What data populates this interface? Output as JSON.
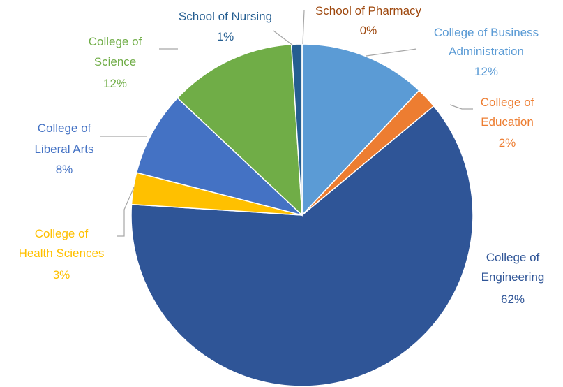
{
  "chart_data": {
    "type": "pie",
    "categories": [
      "College of Business Administration",
      "College of Education",
      "College of Engineering",
      "College of Health Sciences",
      "College of Liberal Arts",
      "College of Science",
      "School of Nursing",
      "School of Pharmacy"
    ],
    "values": [
      12,
      2,
      62,
      3,
      8,
      12,
      1,
      0
    ],
    "value_labels": [
      "12%",
      "2%",
      "62%",
      "3%",
      "8%",
      "12%",
      "1%",
      "0%"
    ],
    "colors": [
      "#5b9bd5",
      "#ed7d31",
      "#2f5597",
      "#ffc000",
      "#4472c4",
      "#70ad47",
      "#255e91",
      "#9e480e"
    ]
  }
}
